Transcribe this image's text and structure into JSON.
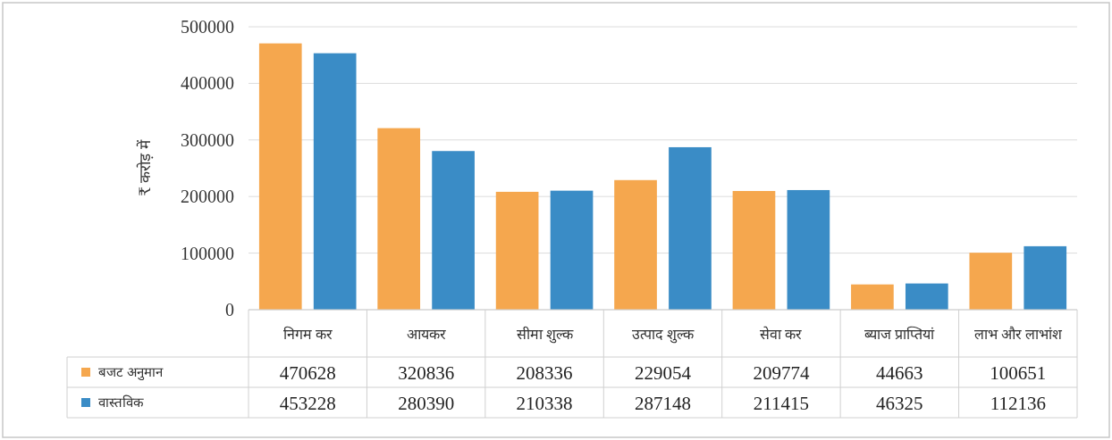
{
  "chart_data": {
    "type": "bar",
    "ylabel": "₹ करोड़ में",
    "categories": [
      "निगम कर",
      "आयकर",
      "सीमा शुल्क",
      "उत्पाद शुल्क",
      "सेवा कर",
      "ब्याज प्राप्तियां",
      "लाभ और लाभांश"
    ],
    "series": [
      {
        "name": "बजट अनुमान",
        "color": "#f5a74e",
        "values": [
          470628,
          320836,
          208336,
          229054,
          209774,
          44663,
          100651
        ]
      },
      {
        "name": "वास्तविक",
        "color": "#3a8cc6",
        "values": [
          453228,
          280390,
          210338,
          287148,
          211415,
          46325,
          112136
        ]
      }
    ],
    "ylim": [
      0,
      500000
    ],
    "yticks": [
      0,
      100000,
      200000,
      300000,
      400000,
      500000
    ],
    "grid": "y",
    "legend": "bottom",
    "data_labels": true
  }
}
